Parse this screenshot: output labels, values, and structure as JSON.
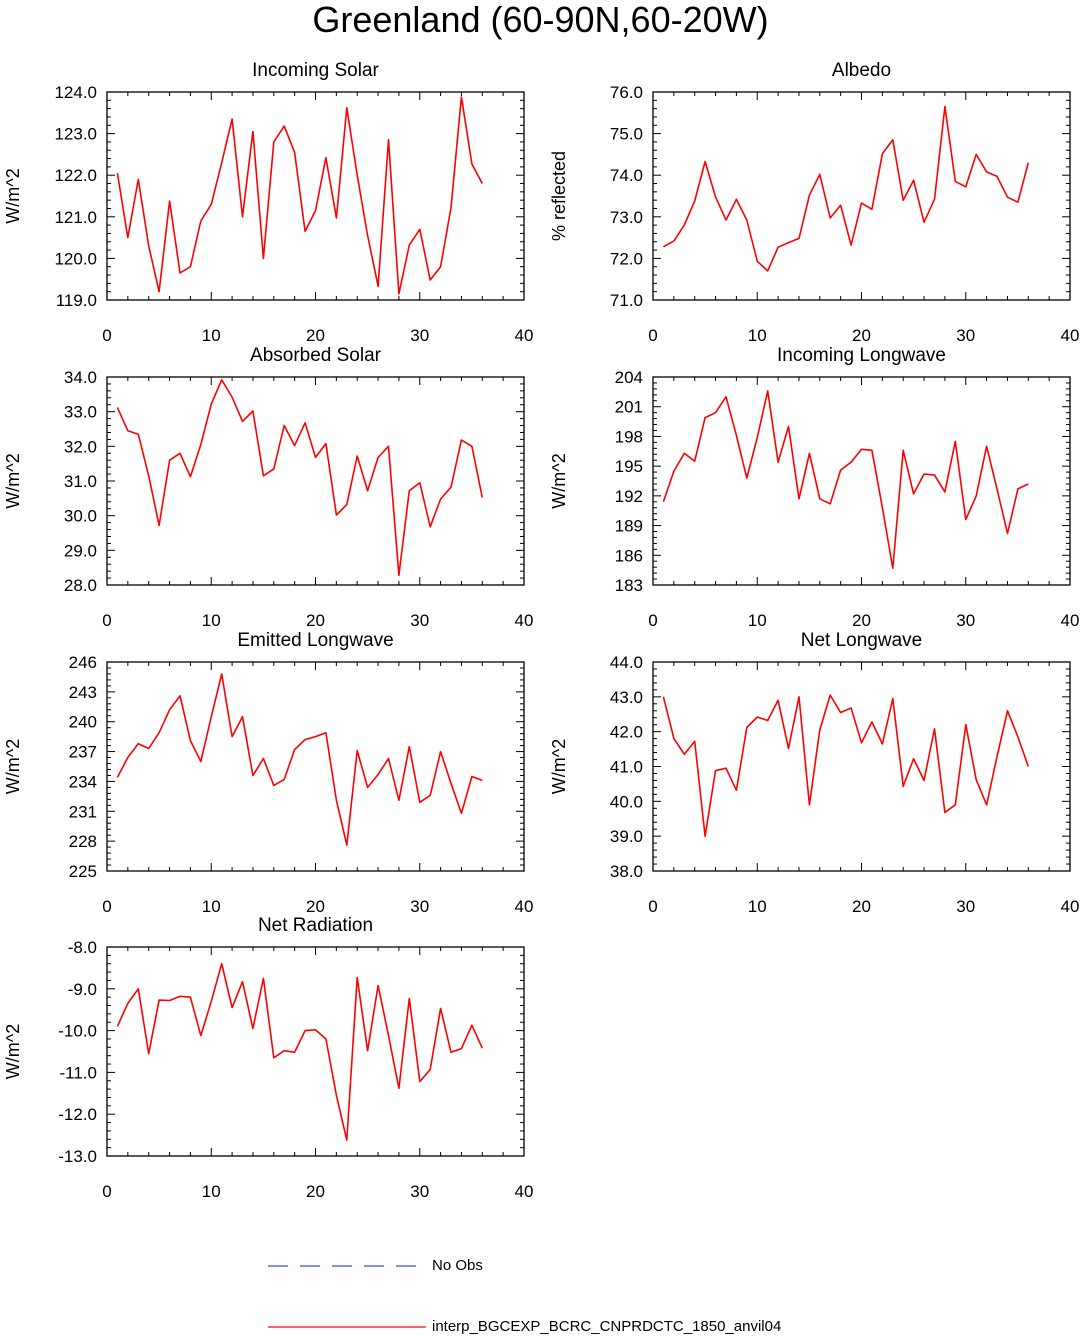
{
  "title": "Greenland (60-90N,60-20W)",
  "colors": {
    "model_line": "#ff0000",
    "obs_line": "#3b47f0",
    "axis": "#000000"
  },
  "legend": {
    "obs_label": "No Obs",
    "model_label": "interp_BGCEXP_BCRC_CNPRDCTC_1850_anvil04"
  },
  "chart_data": [
    {
      "type": "line",
      "title": "Incoming Solar",
      "ylabel": "W/m^2",
      "xlim": [
        0,
        40
      ],
      "ylim": [
        119,
        124
      ],
      "xticks": [
        "0",
        "10",
        "20",
        "30",
        "40"
      ],
      "yticks": [
        "119.0",
        "120.0",
        "121.0",
        "122.0",
        "123.0",
        "124.0"
      ],
      "ytick_values": [
        119,
        120,
        121,
        122,
        123,
        124
      ],
      "x": [
        1,
        2,
        3,
        4,
        5,
        6,
        7,
        8,
        9,
        10,
        11,
        12,
        13,
        14,
        15,
        16,
        17,
        18,
        19,
        20,
        21,
        22,
        23,
        24,
        25,
        26,
        27,
        28,
        29,
        30,
        31,
        32,
        33,
        34,
        35,
        36
      ],
      "series": [
        {
          "name": "interp_BGCEXP_BCRC_CNPRDCTC_1850_anvil04",
          "values": [
            122.05,
            120.5,
            121.9,
            120.3,
            119.2,
            121.38,
            119.65,
            119.8,
            120.9,
            121.3,
            122.3,
            123.35,
            121.0,
            123.05,
            120.0,
            122.8,
            123.18,
            122.55,
            120.65,
            121.15,
            122.42,
            120.97,
            123.62,
            122.0,
            120.55,
            119.33,
            122.85,
            119.15,
            120.32,
            120.7,
            119.48,
            119.8,
            121.22,
            123.88,
            122.27,
            121.8
          ]
        }
      ]
    },
    {
      "type": "line",
      "title": "Albedo",
      "ylabel": "% reflected",
      "xlim": [
        0,
        40
      ],
      "ylim": [
        71,
        76
      ],
      "xticks": [
        "0",
        "10",
        "20",
        "30",
        "40"
      ],
      "yticks": [
        "71.0",
        "72.0",
        "73.0",
        "74.0",
        "75.0",
        "76.0"
      ],
      "ytick_values": [
        71,
        72,
        73,
        74,
        75,
        76
      ],
      "x": [
        1,
        2,
        3,
        4,
        5,
        6,
        7,
        8,
        9,
        10,
        11,
        12,
        13,
        14,
        15,
        16,
        17,
        18,
        19,
        20,
        21,
        22,
        23,
        24,
        25,
        26,
        27,
        28,
        29,
        30,
        31,
        32,
        33,
        34,
        35,
        36
      ],
      "series": [
        {
          "name": "interp_BGCEXP_BCRC_CNPRDCTC_1850_anvil04",
          "values": [
            72.28,
            72.42,
            72.8,
            73.38,
            74.33,
            73.48,
            72.92,
            73.42,
            72.92,
            71.93,
            71.7,
            72.27,
            72.38,
            72.48,
            73.52,
            74.02,
            72.97,
            73.28,
            72.32,
            73.33,
            73.18,
            74.52,
            74.85,
            73.4,
            73.88,
            72.87,
            73.42,
            75.65,
            73.85,
            73.72,
            74.5,
            74.08,
            73.97,
            73.47,
            73.35,
            74.3
          ]
        }
      ]
    },
    {
      "type": "line",
      "title": "Absorbed Solar",
      "ylabel": "W/m^2",
      "xlim": [
        0,
        40
      ],
      "ylim": [
        28,
        34
      ],
      "xticks": [
        "0",
        "10",
        "20",
        "30",
        "40"
      ],
      "yticks": [
        "28.0",
        "29.0",
        "30.0",
        "31.0",
        "32.0",
        "33.0",
        "34.0"
      ],
      "ytick_values": [
        28,
        29,
        30,
        31,
        32,
        33,
        34
      ],
      "x": [
        1,
        2,
        3,
        4,
        5,
        6,
        7,
        8,
        9,
        10,
        11,
        12,
        13,
        14,
        15,
        16,
        17,
        18,
        19,
        20,
        21,
        22,
        23,
        24,
        25,
        26,
        27,
        28,
        29,
        30,
        31,
        32,
        33,
        34,
        35,
        36
      ],
      "series": [
        {
          "name": "interp_BGCEXP_BCRC_CNPRDCTC_1850_anvil04",
          "values": [
            33.12,
            32.45,
            32.35,
            31.15,
            29.72,
            31.6,
            31.8,
            31.12,
            32.05,
            33.22,
            33.92,
            33.42,
            32.72,
            33.02,
            31.15,
            31.35,
            32.6,
            32.02,
            32.68,
            31.68,
            32.08,
            30.02,
            30.32,
            31.72,
            30.72,
            31.68,
            32.0,
            28.28,
            30.72,
            30.95,
            29.68,
            30.48,
            30.82,
            32.18,
            32.0,
            30.52
          ]
        }
      ]
    },
    {
      "type": "line",
      "title": "Incoming Longwave",
      "ylabel": "W/m^2",
      "xlim": [
        0,
        40
      ],
      "ylim": [
        183,
        204
      ],
      "xticks": [
        "0",
        "10",
        "20",
        "30",
        "40"
      ],
      "yticks": [
        "183",
        "186",
        "189",
        "192",
        "195",
        "198",
        "201",
        "204"
      ],
      "ytick_values": [
        183,
        186,
        189,
        192,
        195,
        198,
        201,
        204
      ],
      "x": [
        1,
        2,
        3,
        4,
        5,
        6,
        7,
        8,
        9,
        10,
        11,
        12,
        13,
        14,
        15,
        16,
        17,
        18,
        19,
        20,
        21,
        22,
        23,
        24,
        25,
        26,
        27,
        28,
        29,
        30,
        31,
        32,
        33,
        34,
        35,
        36
      ],
      "series": [
        {
          "name": "interp_BGCEXP_BCRC_CNPRDCTC_1850_anvil04",
          "values": [
            191.4,
            194.5,
            196.3,
            195.5,
            199.9,
            200.4,
            202.0,
            198.1,
            193.8,
            197.9,
            202.6,
            195.4,
            199.0,
            191.7,
            196.3,
            191.7,
            191.2,
            194.6,
            195.4,
            196.7,
            196.6,
            190.8,
            184.7,
            196.6,
            192.2,
            194.2,
            194.1,
            192.4,
            197.5,
            189.6,
            192.0,
            197.0,
            192.7,
            188.2,
            192.7,
            193.2
          ]
        }
      ]
    },
    {
      "type": "line",
      "title": "Emitted Longwave",
      "ylabel": "W/m^2",
      "xlim": [
        0,
        40
      ],
      "ylim": [
        225,
        246
      ],
      "xticks": [
        "0",
        "10",
        "20",
        "30",
        "40"
      ],
      "yticks": [
        "225",
        "228",
        "231",
        "234",
        "237",
        "240",
        "243",
        "246"
      ],
      "ytick_values": [
        225,
        228,
        231,
        234,
        237,
        240,
        243,
        246
      ],
      "x": [
        1,
        2,
        3,
        4,
        5,
        6,
        7,
        8,
        9,
        10,
        11,
        12,
        13,
        14,
        15,
        16,
        17,
        18,
        19,
        20,
        21,
        22,
        23,
        24,
        25,
        26,
        27,
        28,
        29,
        30,
        31,
        32,
        33,
        34,
        35,
        36
      ],
      "series": [
        {
          "name": "interp_BGCEXP_BCRC_CNPRDCTC_1850_anvil04",
          "values": [
            234.4,
            236.4,
            237.8,
            237.3,
            238.9,
            241.2,
            242.6,
            238.1,
            236.0,
            240.5,
            244.8,
            238.5,
            240.5,
            234.6,
            236.3,
            233.6,
            234.2,
            237.2,
            238.2,
            238.5,
            238.9,
            232.1,
            227.6,
            237.1,
            233.4,
            234.7,
            236.3,
            232.1,
            237.5,
            231.9,
            232.6,
            237.0,
            233.8,
            230.8,
            234.5,
            234.1
          ]
        }
      ]
    },
    {
      "type": "line",
      "title": "Net Longwave",
      "ylabel": "W/m^2",
      "xlim": [
        0,
        40
      ],
      "ylim": [
        38,
        44
      ],
      "xticks": [
        "0",
        "10",
        "20",
        "30",
        "40"
      ],
      "yticks": [
        "38.0",
        "39.0",
        "40.0",
        "41.0",
        "42.0",
        "43.0",
        "44.0"
      ],
      "ytick_values": [
        38,
        39,
        40,
        41,
        42,
        43,
        44
      ],
      "x": [
        1,
        2,
        3,
        4,
        5,
        6,
        7,
        8,
        9,
        10,
        11,
        12,
        13,
        14,
        15,
        16,
        17,
        18,
        19,
        20,
        21,
        22,
        23,
        24,
        25,
        26,
        27,
        28,
        29,
        30,
        31,
        32,
        33,
        34,
        35,
        36
      ],
      "series": [
        {
          "name": "interp_BGCEXP_BCRC_CNPRDCTC_1850_anvil04",
          "values": [
            43.0,
            41.8,
            41.35,
            41.72,
            39.0,
            40.88,
            40.95,
            40.32,
            42.12,
            42.42,
            42.32,
            42.9,
            41.52,
            43.0,
            39.9,
            42.05,
            43.05,
            42.55,
            42.68,
            41.68,
            42.28,
            41.65,
            42.95,
            40.43,
            41.22,
            40.6,
            42.08,
            39.68,
            39.9,
            42.2,
            40.62,
            39.9,
            41.28,
            42.6,
            41.85,
            41.0
          ]
        }
      ]
    },
    {
      "type": "line",
      "title": "Net Radiation",
      "ylabel": "W/m^2",
      "xlim": [
        0,
        40
      ],
      "ylim": [
        -13,
        -8
      ],
      "xticks": [
        "0",
        "10",
        "20",
        "30",
        "40"
      ],
      "yticks": [
        "-13.0",
        "-12.0",
        "-11.0",
        "-10.0",
        "-9.0",
        "-8.0"
      ],
      "ytick_values": [
        -13,
        -12,
        -11,
        -10,
        -9,
        -8
      ],
      "x": [
        1,
        2,
        3,
        4,
        5,
        6,
        7,
        8,
        9,
        10,
        11,
        12,
        13,
        14,
        15,
        16,
        17,
        18,
        19,
        20,
        21,
        22,
        23,
        24,
        25,
        26,
        27,
        28,
        29,
        30,
        31,
        32,
        33,
        34,
        35,
        36
      ],
      "series": [
        {
          "name": "interp_BGCEXP_BCRC_CNPRDCTC_1850_anvil04",
          "values": [
            -9.9,
            -9.35,
            -9.0,
            -10.55,
            -9.27,
            -9.28,
            -9.18,
            -9.2,
            -10.12,
            -9.3,
            -8.4,
            -9.45,
            -8.83,
            -9.95,
            -8.75,
            -10.65,
            -10.48,
            -10.52,
            -10.0,
            -9.98,
            -10.2,
            -11.55,
            -12.62,
            -8.73,
            -10.48,
            -8.92,
            -10.12,
            -11.38,
            -9.23,
            -11.22,
            -10.93,
            -9.47,
            -10.52,
            -10.43,
            -9.87,
            -10.42
          ]
        }
      ]
    }
  ]
}
